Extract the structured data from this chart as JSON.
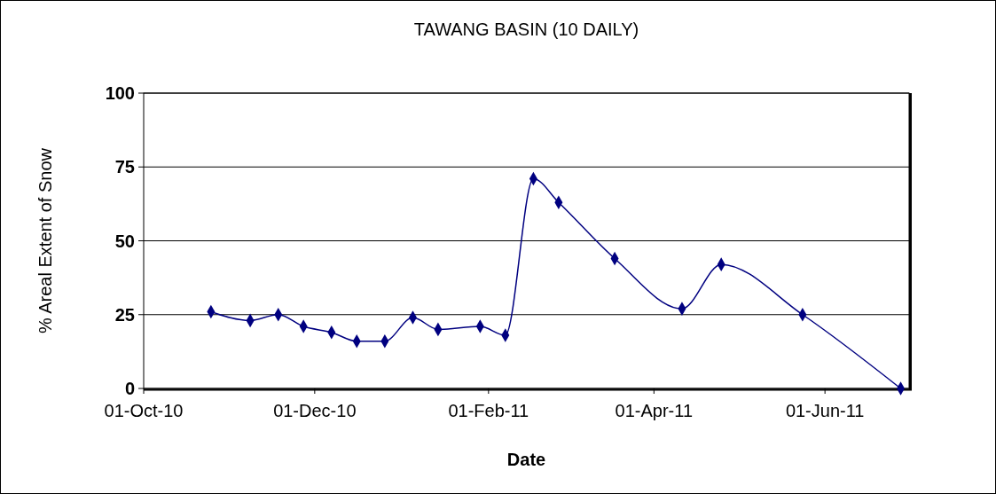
{
  "chart_data": {
    "type": "line",
    "title": "TAWANG BASIN (10 DAILY)",
    "xlabel": "Date",
    "ylabel": "% Areal Extent of Snow",
    "x": [
      "2010-10-25",
      "2010-11-08",
      "2010-11-18",
      "2010-11-27",
      "2010-12-07",
      "2010-12-16",
      "2010-12-26",
      "2011-01-05",
      "2011-01-14",
      "2011-01-29",
      "2011-02-07",
      "2011-02-17",
      "2011-02-26",
      "2011-03-18",
      "2011-04-11",
      "2011-04-25",
      "2011-05-24",
      "2011-06-28"
    ],
    "series": [
      {
        "color": "#000080",
        "values": [
          26,
          23,
          25,
          21,
          19,
          16,
          16,
          24,
          20,
          21,
          18,
          71,
          63,
          44,
          27,
          42,
          25,
          0
        ]
      }
    ],
    "xlim": [
      "2010-10-01",
      "2011-07-01"
    ],
    "xticks": [
      {
        "value": "2010-10-01",
        "label": "01-Oct-10"
      },
      {
        "value": "2010-12-01",
        "label": "01-Dec-10"
      },
      {
        "value": "2011-02-01",
        "label": "01-Feb-11"
      },
      {
        "value": "2011-04-01",
        "label": "01-Apr-11"
      },
      {
        "value": "2011-06-01",
        "label": "01-Jun-11"
      }
    ],
    "ylim": [
      0,
      100
    ],
    "yticks": [
      0,
      25,
      50,
      75,
      100
    ],
    "grid": "y",
    "marker": "diamond",
    "line_style": "solid"
  }
}
